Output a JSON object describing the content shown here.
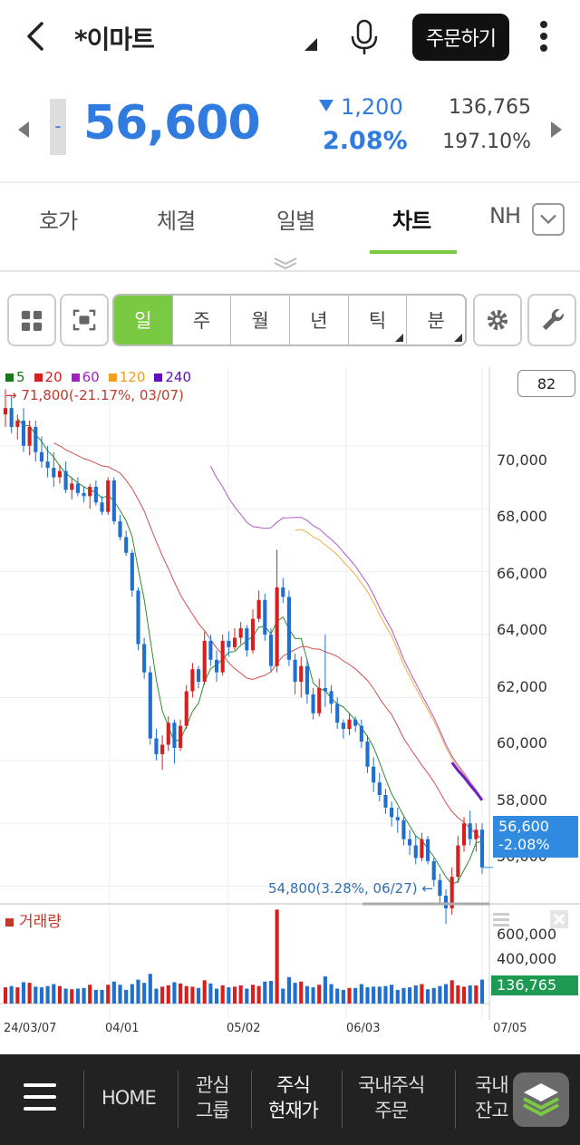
{
  "header": {
    "stock_name": "*이마트",
    "order_button": "주문하기"
  },
  "quote": {
    "dash": "-",
    "price": "56,600",
    "change": "1,200",
    "change_pct": "2.08%",
    "volume": "136,765",
    "volume_ratio": "197.10%",
    "color_down": "#2f7be0"
  },
  "tabs": [
    {
      "label": "호가"
    },
    {
      "label": "체결"
    },
    {
      "label": "일별"
    },
    {
      "label": "차트"
    },
    {
      "label": "NH"
    }
  ],
  "periods": [
    "일",
    "주",
    "월",
    "년",
    "틱",
    "분"
  ],
  "chart": {
    "legend": [
      {
        "label": "5",
        "color": "#1a7a1a"
      },
      {
        "label": "20",
        "color": "#d62020"
      },
      {
        "label": "60",
        "color": "#a020c0"
      },
      {
        "label": "120",
        "color": "#f0a020"
      },
      {
        "label": "240",
        "color": "#6010c0"
      }
    ],
    "high_label": "→ 71,800(-21.17%, 03/07)",
    "low_label": "54,800(3.28%, 06/27) ←",
    "count": "82",
    "price_tag_value": "56,600",
    "price_tag_pct": "-2.08%",
    "y_ticks": [
      "70,000",
      "68,000",
      "66,000",
      "64,000",
      "62,000",
      "60,000",
      "58,000",
      "56,000"
    ],
    "x_ticks": [
      "24/03/07",
      "04/01",
      "05/02",
      "06/03",
      "07/05"
    ],
    "volume_title": "거래량",
    "volume_ticks": [
      "600,000",
      "400,000"
    ],
    "volume_tag": "136,765"
  },
  "chart_data": {
    "type": "candlestick",
    "title": "",
    "ylim": [
      55500,
      72500
    ],
    "ohlc": [
      [
        71000,
        71800,
        70600,
        71200
      ],
      [
        71200,
        71600,
        70400,
        70600
      ],
      [
        70600,
        71000,
        70200,
        70800
      ],
      [
        70800,
        71200,
        69800,
        70000
      ],
      [
        70000,
        70800,
        69700,
        70600
      ],
      [
        70600,
        70800,
        69500,
        69800
      ],
      [
        69800,
        70300,
        69300,
        69500
      ],
      [
        69500,
        70000,
        69000,
        69300
      ],
      [
        69300,
        69800,
        68700,
        69000
      ],
      [
        69000,
        69400,
        68800,
        69200
      ],
      [
        69200,
        69500,
        68500,
        68600
      ],
      [
        68600,
        69000,
        68300,
        68800
      ],
      [
        68800,
        69000,
        68400,
        68500
      ],
      [
        68500,
        68700,
        68200,
        68400
      ],
      [
        68400,
        68800,
        68000,
        68700
      ],
      [
        68700,
        68900,
        68100,
        68200
      ],
      [
        68200,
        68400,
        67800,
        67900
      ],
      [
        67900,
        69000,
        67800,
        68900
      ],
      [
        68900,
        69000,
        67500,
        67600
      ],
      [
        67600,
        67800,
        67000,
        67100
      ],
      [
        67100,
        67300,
        66500,
        66600
      ],
      [
        66600,
        66700,
        65200,
        65400
      ],
      [
        65400,
        65500,
        63500,
        63700
      ],
      [
        63700,
        63900,
        62600,
        62800
      ],
      [
        62800,
        63000,
        60500,
        60700
      ],
      [
        60700,
        61000,
        60000,
        60200
      ],
      [
        60200,
        60800,
        59700,
        60500
      ],
      [
        60500,
        61400,
        60300,
        61200
      ],
      [
        61200,
        61300,
        59900,
        60400
      ],
      [
        60400,
        61300,
        60300,
        61100
      ],
      [
        61100,
        62400,
        61000,
        62200
      ],
      [
        62200,
        63100,
        62000,
        62900
      ],
      [
        62900,
        63000,
        62300,
        62500
      ],
      [
        62500,
        64100,
        62400,
        63800
      ],
      [
        63800,
        64000,
        63000,
        63200
      ],
      [
        63200,
        63500,
        62500,
        62800
      ],
      [
        62800,
        64000,
        62700,
        63800
      ],
      [
        63800,
        64100,
        63300,
        63600
      ],
      [
        63600,
        64200,
        63500,
        63900
      ],
      [
        63900,
        64400,
        63700,
        64200
      ],
      [
        64200,
        64300,
        63300,
        63500
      ],
      [
        63500,
        64800,
        63400,
        64500
      ],
      [
        64500,
        65400,
        64400,
        65100
      ],
      [
        65100,
        65300,
        63800,
        64000
      ],
      [
        64000,
        64200,
        62800,
        63000
      ],
      [
        63000,
        66700,
        62800,
        65500
      ],
      [
        65500,
        65800,
        65000,
        65200
      ],
      [
        65200,
        65400,
        63000,
        63200
      ],
      [
        63200,
        63400,
        62100,
        62500
      ],
      [
        62500,
        63300,
        62000,
        63000
      ],
      [
        63000,
        63200,
        61800,
        62100
      ],
      [
        62100,
        62300,
        61300,
        61500
      ],
      [
        61500,
        62600,
        61400,
        62300
      ],
      [
        62300,
        64000,
        61700,
        62200
      ],
      [
        62200,
        62400,
        61500,
        61800
      ],
      [
        61800,
        62000,
        61000,
        61200
      ],
      [
        61200,
        61300,
        60700,
        61000
      ],
      [
        61000,
        61500,
        60800,
        61300
      ],
      [
        61300,
        61400,
        60900,
        61100
      ],
      [
        61100,
        61300,
        60400,
        60600
      ],
      [
        60600,
        60800,
        59600,
        59800
      ],
      [
        59800,
        60100,
        59000,
        59300
      ],
      [
        59300,
        59600,
        58700,
        58900
      ],
      [
        58900,
        59100,
        58300,
        58500
      ],
      [
        58500,
        58700,
        57900,
        58200
      ],
      [
        58200,
        58500,
        57700,
        58100
      ],
      [
        58100,
        58200,
        57300,
        57500
      ],
      [
        57500,
        57800,
        57000,
        57300
      ],
      [
        57300,
        57600,
        56700,
        56900
      ],
      [
        56900,
        57700,
        56800,
        57500
      ],
      [
        57500,
        57600,
        56700,
        56800
      ],
      [
        56800,
        56900,
        56000,
        56200
      ],
      [
        56200,
        56400,
        55400,
        55700
      ],
      [
        55700,
        55900,
        54800,
        55300
      ],
      [
        55300,
        56600,
        55100,
        56300
      ],
      [
        56300,
        57600,
        56100,
        57300
      ],
      [
        57300,
        58200,
        57100,
        58000
      ],
      [
        58000,
        58400,
        57300,
        57500
      ],
      [
        57500,
        58000,
        57100,
        57800
      ],
      [
        57800,
        58000,
        56400,
        56600
      ]
    ],
    "volume_ylim": [
      0,
      700000
    ]
  }
}
